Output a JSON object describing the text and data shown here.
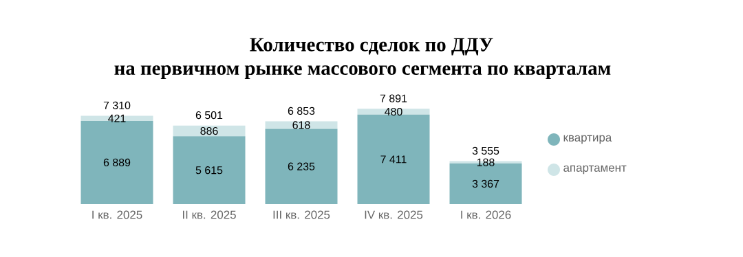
{
  "chart_data": {
    "type": "bar",
    "title": "Количество сделок по ДДУ",
    "subtitle": "на первичном рынке массового сегмента по кварталам",
    "categories": [
      "I кв. 2025",
      "II кв. 2025",
      "III кв. 2025",
      "IV кв. 2025",
      "I кв. 2026"
    ],
    "stacked": true,
    "legend": "right",
    "series": [
      {
        "name": "квартира",
        "color": "#7fb5bb",
        "values": [
          6889,
          5615,
          6235,
          7411,
          3367
        ],
        "value_labels": [
          "6 889",
          "5 615",
          "6 235",
          "7 411",
          "3 367"
        ]
      },
      {
        "name": "апартамент",
        "color": "#cfe5e7",
        "values": [
          421,
          886,
          618,
          480,
          188
        ],
        "value_labels": [
          "421",
          "886",
          "618",
          "480",
          "188"
        ]
      }
    ],
    "totals": [
      "7 310",
      "6 501",
      "6 853",
      "7 891",
      "3 555"
    ]
  }
}
